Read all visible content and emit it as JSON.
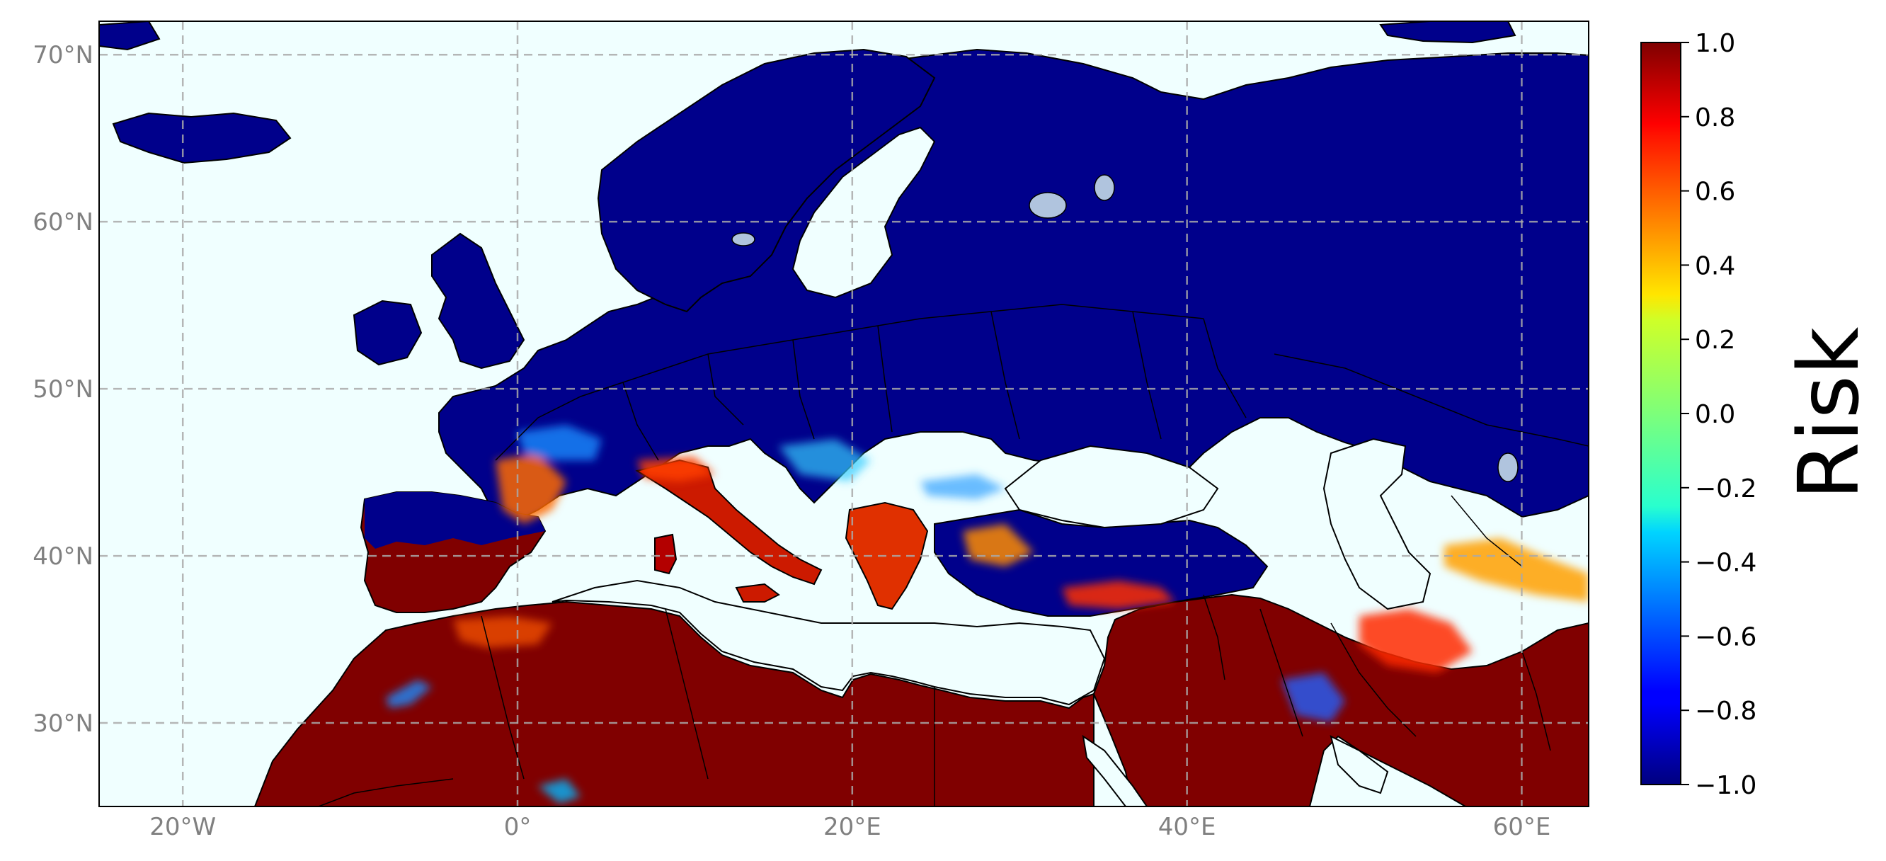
{
  "map": {
    "lon_range": [
      -25,
      64
    ],
    "lat_range": [
      25,
      72
    ],
    "projection": "PlateCarree",
    "ocean_color": "#f0ffff",
    "coastline_color": "#000000",
    "gridlines": {
      "style": "dashed",
      "color": "#aaaaaa",
      "lon_ticks": [
        {
          "value": -20,
          "label": "20°W"
        },
        {
          "value": 0,
          "label": "0°"
        },
        {
          "value": 20,
          "label": "20°E"
        },
        {
          "value": 40,
          "label": "40°E"
        },
        {
          "value": 60,
          "label": "60°E"
        }
      ],
      "lat_ticks": [
        {
          "value": 30,
          "label": "30°N"
        },
        {
          "value": 40,
          "label": "40°N"
        },
        {
          "value": 50,
          "label": "50°N"
        },
        {
          "value": 60,
          "label": "60°N"
        },
        {
          "value": 70,
          "label": "70°N"
        }
      ]
    },
    "low_risk_color": "#00008b",
    "high_risk_color": "#800000"
  },
  "colorbar": {
    "label": "Risk",
    "colormap": "jet",
    "range": [
      -1.0,
      1.0
    ],
    "ticks": [
      {
        "value": 1.0,
        "label": "1.0"
      },
      {
        "value": 0.8,
        "label": "0.8"
      },
      {
        "value": 0.6,
        "label": "0.6"
      },
      {
        "value": 0.4,
        "label": "0.4"
      },
      {
        "value": 0.2,
        "label": "0.2"
      },
      {
        "value": 0.0,
        "label": "0.0"
      },
      {
        "value": -0.2,
        "label": "−0.2"
      },
      {
        "value": -0.4,
        "label": "−0.4"
      },
      {
        "value": -0.6,
        "label": "−0.6"
      },
      {
        "value": -0.8,
        "label": "−0.8"
      },
      {
        "value": -1.0,
        "label": "−1.0"
      }
    ]
  }
}
